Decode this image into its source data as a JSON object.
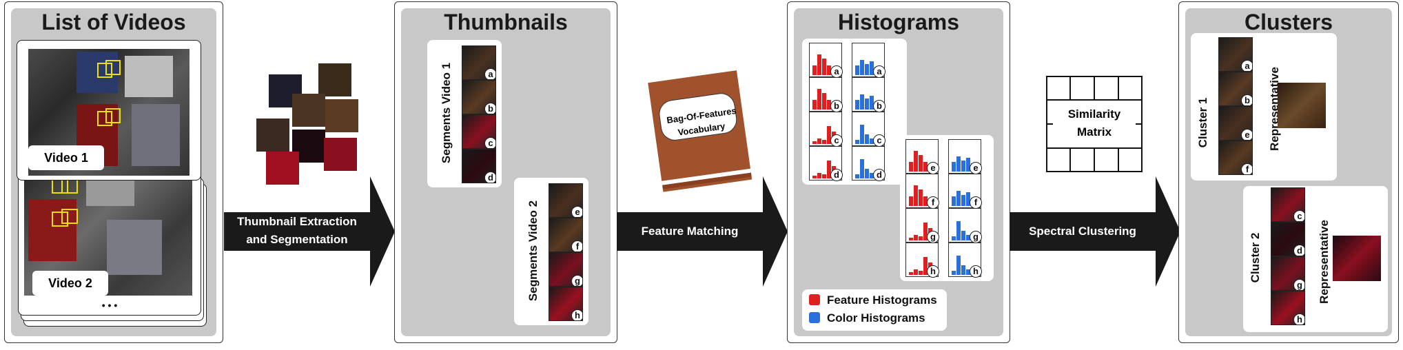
{
  "colors": {
    "panel_bg": "#c8c8c8",
    "arrow": "#1a1a1a",
    "feature_red": "#e02020",
    "color_blue": "#2a6fdb",
    "book": "#a0522d"
  },
  "panels": {
    "videos": {
      "title": "List of Videos",
      "video1": "Video 1",
      "video2": "Video 2",
      "more": "• • •"
    },
    "thumbnails": {
      "title": "Thumbnails",
      "seg1": "Segments Video 1",
      "seg2": "Segments Video 2"
    },
    "histograms": {
      "title": "Histograms"
    },
    "clusters": {
      "title": "Clusters",
      "cluster1": "Cluster 1",
      "cluster2": "Cluster 2",
      "representative": "Representative"
    }
  },
  "arrows": {
    "a1": {
      "line1": "Thumbnail Extraction",
      "line2": "and Segmentation"
    },
    "a2": {
      "label": "Feature Matching"
    },
    "a3": {
      "label": "Spectral Clustering"
    }
  },
  "book": {
    "line1": "Bag-Of-Features",
    "line2": "Vocabulary"
  },
  "matrix": {
    "line1": "Similarity",
    "line2": "Matrix"
  },
  "legend": {
    "feature": "Feature Histograms",
    "color": "Color Histograms"
  },
  "seg_letters_v1": [
    "a",
    "b",
    "c",
    "d"
  ],
  "seg_letters_v2": [
    "e",
    "f",
    "g",
    "h"
  ],
  "cluster1_letters": [
    "a",
    "b",
    "e",
    "f"
  ],
  "cluster2_letters": [
    "c",
    "d",
    "g",
    "h"
  ]
}
